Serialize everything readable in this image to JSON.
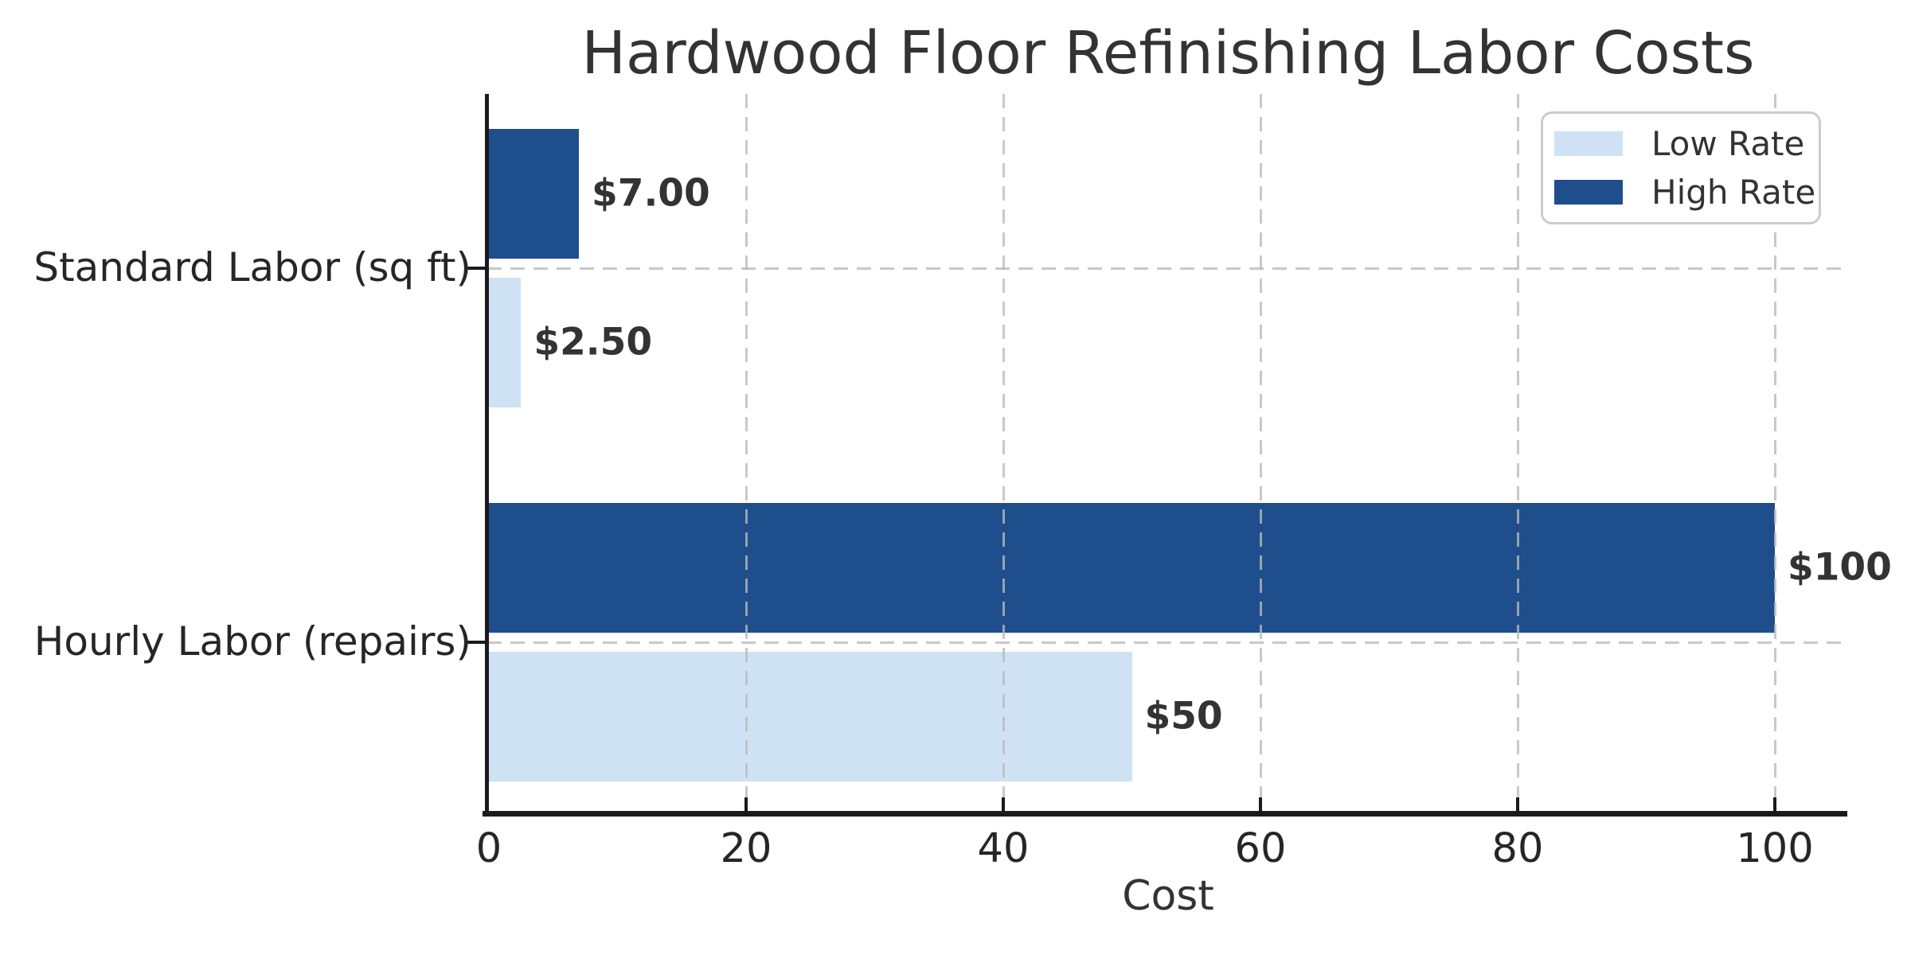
{
  "chart_data": {
    "type": "bar",
    "orientation": "horizontal",
    "title": "Hardwood Floor Refinishing Labor Costs",
    "xlabel": "Cost",
    "ylabel": "",
    "categories": [
      "Standard Labor (sq ft)",
      "Hourly Labor (repairs)"
    ],
    "series": [
      {
        "name": "Low Rate",
        "color": "#CEE2F4",
        "values": [
          2.5,
          50
        ],
        "value_labels": [
          "$2.50",
          "$50"
        ]
      },
      {
        "name": "High Rate",
        "color": "#1F4E8C",
        "values": [
          7,
          100
        ],
        "value_labels": [
          "$7.00",
          "$100"
        ]
      }
    ],
    "x_ticks": [
      0,
      20,
      40,
      60,
      80,
      100
    ],
    "xlim": [
      0,
      105.5
    ],
    "grid": "dashed, vertical at x-ticks and horizontal at category centers, drawn over bars",
    "legend": {
      "position": "upper right",
      "entries": [
        "Low Rate",
        "High Rate"
      ]
    }
  },
  "style": {
    "high_rate_color": "#1F4E8C",
    "low_rate_color": "#CEE2F4",
    "grid_color": "#C8C8C8",
    "spine_color": "#1A1A1A",
    "text_color": "#333333",
    "tick_text_color": "#262626",
    "legend_border_color": "#CCCCCC",
    "background": "#FFFFFF"
  }
}
